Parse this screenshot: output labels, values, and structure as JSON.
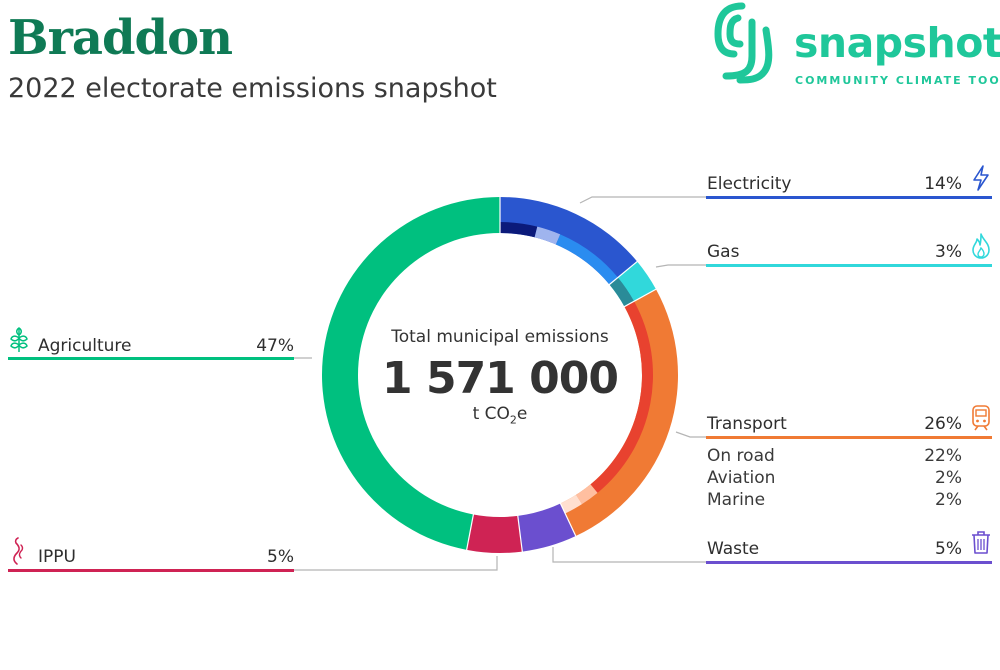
{
  "header": {
    "title": "Braddon",
    "subtitle": "2022 electorate emissions snapshot"
  },
  "logo": {
    "word": "snapshot",
    "tagline": "COMMUNITY CLIMATE TOOL"
  },
  "center": {
    "label": "Total municipal emissions",
    "value": "1 571 000",
    "unit_prefix": "t CO",
    "unit_sub": "2",
    "unit_suffix": "e"
  },
  "chart_data": {
    "type": "pie",
    "title": "",
    "total": 1571000,
    "unit": "t CO2e",
    "series": [
      {
        "name": "Electricity",
        "value": 14,
        "label": "14%",
        "color": "#2a56cf",
        "icon": "lightning-icon",
        "subcategories": []
      },
      {
        "name": "Gas",
        "value": 3,
        "label": "3%",
        "color": "#31d8db",
        "icon": "flame-icon",
        "subcategories": []
      },
      {
        "name": "Transport",
        "value": 26,
        "label": "26%",
        "color": "#f07a34",
        "icon": "train-icon",
        "subcategories": [
          {
            "name": "On road",
            "value": 22,
            "label": "22%"
          },
          {
            "name": "Aviation",
            "value": 2,
            "label": "2%"
          },
          {
            "name": "Marine",
            "value": 2,
            "label": "2%"
          }
        ]
      },
      {
        "name": "Waste",
        "value": 5,
        "label": "5%",
        "color": "#6b4fcf",
        "icon": "trash-icon",
        "subcategories": []
      },
      {
        "name": "IPPU",
        "value": 5,
        "label": "5%",
        "color": "#cf2354",
        "icon": "smoke-icon",
        "subcategories": []
      },
      {
        "name": "Agriculture",
        "value": 47,
        "label": "47%",
        "color": "#00c07f",
        "icon": "wheat-icon",
        "subcategories": []
      }
    ]
  }
}
